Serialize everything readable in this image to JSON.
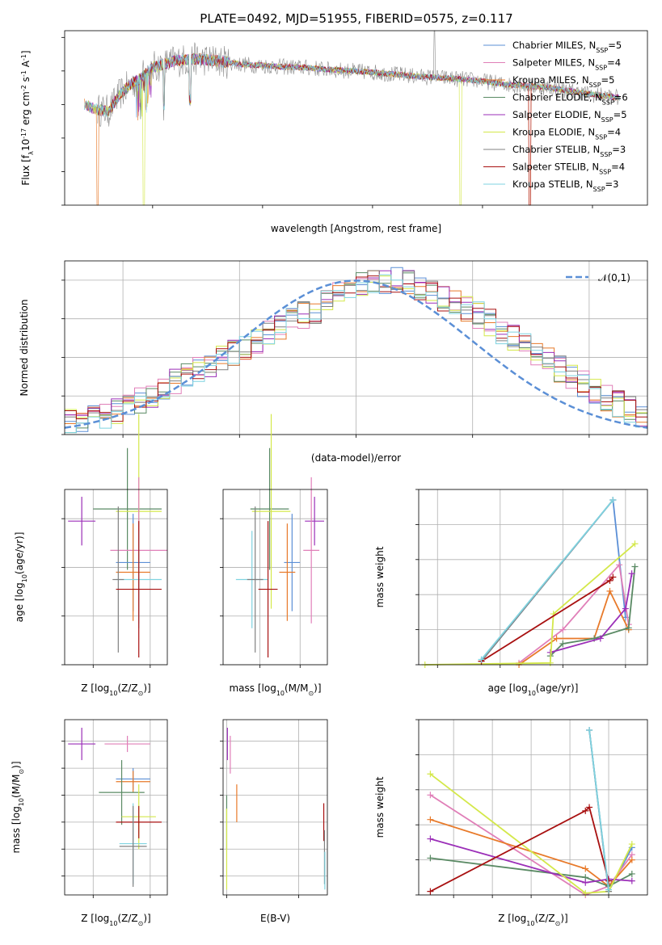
{
  "figure_title": "PLATE=0492, MJD=51955, FIBERID=0575, z=0.117",
  "colors": {
    "Chabrier MILES": "#5b8fd6",
    "Salpeter MILES": "#e07fb8",
    "Kroupa MILES": "#e87a2a",
    "Chabrier ELODIE": "#5a8a64",
    "Salpeter ELODIE": "#9b2fb8",
    "Kroupa ELODIE": "#d4e84a",
    "Chabrier STELIB": "#808080",
    "Salpeter STELIB": "#a81010",
    "Kroupa STELIB": "#7fd3e0"
  },
  "chart_data": [
    {
      "id": "spectrum",
      "type": "line",
      "title": "PLATE=0492, MJD=51955, FIBERID=0575, z=0.117",
      "xlabel": "wavelength [Angstrom, rest frame]",
      "ylabel": "Flux [f$_\\lambda$10$^{-17}$ erg cm$^{-2}$ s$^{-1}$ A$^{-1}$]",
      "xlim": [
        3200,
        8500
      ],
      "ylim": [
        0,
        26
      ],
      "xticks": [
        4000,
        5000,
        6000,
        7000,
        8000
      ],
      "yticks": [
        0,
        5,
        10,
        15,
        20,
        25
      ],
      "grid": false,
      "legend_position": "top-right",
      "legend": [
        "Chabrier MILES, N$_{SSP}$=5",
        "Salpeter MILES, N$_{SSP}$=4",
        "Kroupa MILES, N$_{SSP}$=5",
        "Chabrier ELODIE, N$_{SSP}$=6",
        "Salpeter ELODIE, N$_{SSP}$=5",
        "Kroupa ELODIE, N$_{SSP}$=4",
        "Chabrier STELIB, N$_{SSP}$=3",
        "Salpeter STELIB, N$_{SSP}$=4",
        "Kroupa STELIB, N$_{SSP}$=3"
      ],
      "continuum": {
        "x": [
          3380,
          3500,
          3600,
          3700,
          3800,
          3900,
          4000,
          4200,
          4400,
          4600,
          4800,
          5000,
          5200,
          5400,
          5600,
          5800,
          6000,
          6200,
          6400,
          6600,
          6800,
          7000,
          7200,
          7400,
          7600,
          7800,
          8000,
          8250
        ],
        "y": [
          15.0,
          14.2,
          14.0,
          16.5,
          18.0,
          19.0,
          20.5,
          21.5,
          21.8,
          21.5,
          21.0,
          20.8,
          20.6,
          20.5,
          20.2,
          20.0,
          19.8,
          19.5,
          19.2,
          19.0,
          18.8,
          18.5,
          18.0,
          17.8,
          17.5,
          17.0,
          16.5,
          16.0
        ]
      },
      "drops": [
        {
          "series": "Kroupa MILES",
          "wavelengths": [
            3500,
            7430
          ]
        },
        {
          "series": "Kroupa ELODIE",
          "wavelengths": [
            3920,
            6800
          ]
        },
        {
          "series": "Salpeter STELIB",
          "wavelengths": [
            7430
          ]
        }
      ]
    },
    {
      "id": "residuals",
      "type": "area",
      "xlabel": "(data-model)/error",
      "ylabel": "Normed distribution",
      "xlim": [
        -2.5,
        2.5
      ],
      "ylim": [
        0,
        0.45
      ],
      "xticks": [
        -2,
        -1,
        0,
        1,
        2
      ],
      "yticks": [
        0.0,
        0.1,
        0.2,
        0.3,
        0.4
      ],
      "grid": true,
      "legend_position": "top-right",
      "legend": [
        "$\\mathcal{N}(0,1)$"
      ],
      "bin_width": 0.1,
      "bin_start": -2.5,
      "envelope": [
        0.03,
        0.035,
        0.04,
        0.05,
        0.06,
        0.075,
        0.09,
        0.105,
        0.12,
        0.135,
        0.15,
        0.165,
        0.18,
        0.195,
        0.21,
        0.225,
        0.24,
        0.26,
        0.28,
        0.3,
        0.31,
        0.32,
        0.34,
        0.36,
        0.375,
        0.385,
        0.39,
        0.395,
        0.4,
        0.39,
        0.38,
        0.37,
        0.355,
        0.34,
        0.325,
        0.31,
        0.29,
        0.27,
        0.25,
        0.23,
        0.21,
        0.19,
        0.17,
        0.15,
        0.13,
        0.11,
        0.095,
        0.08,
        0.065,
        0.05
      ]
    },
    {
      "id": "age-vs-Z",
      "type": "scatter",
      "xlabel": "Z [log$_{10}$(Z/Z$_\\odot$)]",
      "ylabel": "age  [log$_{10}$(age/yr)]",
      "xlim": [
        -0.75,
        0.15
      ],
      "ylim": [
        9.4,
        10.12
      ],
      "xticks": [
        -0.5,
        0.0
      ],
      "yticks": [
        9.4,
        9.6,
        9.8,
        10.0
      ],
      "grid": true,
      "points": [
        {
          "series": "Salpeter ELODIE",
          "x": -0.6,
          "y": 9.99,
          "xerr": 0.12,
          "yerr": 0.1
        },
        {
          "series": "Chabrier ELODIE",
          "x": -0.2,
          "y": 10.04,
          "xerr": 0.3,
          "yerr": 0.25
        },
        {
          "series": "Kroupa ELODIE",
          "x": -0.1,
          "y": 10.03,
          "xerr": 0.2,
          "yerr": 0.4
        },
        {
          "series": "Salpeter MILES",
          "x": -0.1,
          "y": 9.87,
          "xerr": 0.25,
          "yerr": 0.3
        },
        {
          "series": "Chabrier MILES",
          "x": -0.15,
          "y": 9.82,
          "xerr": 0.15,
          "yerr": 0.2
        },
        {
          "series": "Kroupa MILES",
          "x": -0.15,
          "y": 9.78,
          "xerr": 0.15,
          "yerr": 0.2
        },
        {
          "series": "Kroupa STELIB",
          "x": -0.1,
          "y": 9.75,
          "xerr": 0.2,
          "yerr": 0.2
        },
        {
          "series": "Chabrier STELIB",
          "x": -0.28,
          "y": 9.75,
          "xerr": 0.05,
          "yerr": 0.3
        },
        {
          "series": "Salpeter STELIB",
          "x": -0.1,
          "y": 9.71,
          "xerr": 0.2,
          "yerr": 0.28
        }
      ]
    },
    {
      "id": "age-vs-mass",
      "type": "scatter",
      "xlabel": "mass [log$_{10}$(M/M$_\\odot$)]",
      "ylabel": "",
      "xlim": [
        10.02,
        10.67
      ],
      "ylim": [
        9.4,
        10.12
      ],
      "xticks": [
        10.25,
        10.5
      ],
      "yticks": [
        9.4,
        9.6,
        9.8,
        10.0
      ],
      "grid": true,
      "points": [
        {
          "series": "Salpeter ELODIE",
          "x": 10.59,
          "y": 9.99,
          "xerr": 0.06,
          "yerr": 0.1
        },
        {
          "series": "Chabrier ELODIE",
          "x": 10.31,
          "y": 10.04,
          "xerr": 0.12,
          "yerr": 0.25
        },
        {
          "series": "Kroupa ELODIE",
          "x": 10.32,
          "y": 10.03,
          "xerr": 0.12,
          "yerr": 0.4
        },
        {
          "series": "Salpeter MILES",
          "x": 10.57,
          "y": 9.87,
          "xerr": 0.05,
          "yerr": 0.3
        },
        {
          "series": "Chabrier MILES",
          "x": 10.45,
          "y": 9.82,
          "xerr": 0.05,
          "yerr": 0.2
        },
        {
          "series": "Kroupa MILES",
          "x": 10.42,
          "y": 9.78,
          "xerr": 0.05,
          "yerr": 0.2
        },
        {
          "series": "Kroupa STELIB",
          "x": 10.2,
          "y": 9.75,
          "xerr": 0.1,
          "yerr": 0.2
        },
        {
          "series": "Chabrier STELIB",
          "x": 10.22,
          "y": 9.75,
          "xerr": 0.05,
          "yerr": 0.3
        },
        {
          "series": "Salpeter STELIB",
          "x": 10.3,
          "y": 9.71,
          "xerr": 0.06,
          "yerr": 0.28
        }
      ]
    },
    {
      "id": "weight-vs-age",
      "type": "line",
      "xlabel": "age  [log$_{10}$(age/yr)]",
      "ylabel": "mass weight",
      "xlim": [
        6.7,
        10.35
      ],
      "ylim": [
        0,
        1
      ],
      "xticks": [
        7,
        8,
        9,
        10
      ],
      "yticks": [
        0.0,
        0.2,
        0.4,
        0.6,
        0.8,
        1.0
      ],
      "grid": true,
      "series": [
        {
          "name": "Chabrier MILES",
          "x": [
            7.7,
            9.8,
            10.0
          ],
          "y": [
            0.02,
            0.94,
            0.27
          ]
        },
        {
          "name": "Salpeter MILES",
          "x": [
            8.3,
            9.0,
            9.9,
            10.05
          ],
          "y": [
            0.01,
            0.2,
            0.57,
            0.23
          ]
        },
        {
          "name": "Kroupa MILES",
          "x": [
            8.3,
            8.9,
            9.5,
            9.75,
            10.05
          ],
          "y": [
            0.0,
            0.15,
            0.15,
            0.42,
            0.2
          ]
        },
        {
          "name": "Chabrier ELODIE",
          "x": [
            8.8,
            9.0,
            9.5,
            10.05,
            10.15
          ],
          "y": [
            0.05,
            0.12,
            0.15,
            0.21,
            0.56
          ]
        },
        {
          "name": "Salpeter ELODIE",
          "x": [
            8.8,
            9.6,
            10.0,
            10.1
          ],
          "y": [
            0.07,
            0.15,
            0.32,
            0.52
          ]
        },
        {
          "name": "Kroupa ELODIE",
          "x": [
            6.8,
            8.8,
            8.85,
            10.15
          ],
          "y": [
            0.0,
            0.01,
            0.29,
            0.69
          ]
        },
        {
          "name": "Chabrier STELIB",
          "x": [
            7.7,
            9.8
          ],
          "y": [
            0.02,
            0.94
          ]
        },
        {
          "name": "Salpeter STELIB",
          "x": [
            7.7,
            9.75,
            9.8
          ],
          "y": [
            0.02,
            0.48,
            0.5
          ]
        },
        {
          "name": "Kroupa STELIB",
          "x": [
            7.7,
            9.8
          ],
          "y": [
            0.03,
            0.94
          ]
        }
      ]
    },
    {
      "id": "mass-vs-Z",
      "type": "scatter",
      "xlabel": "Z [log$_{10}$(Z/Z$_\\odot$)]",
      "ylabel": "mass [log$_{10}$(M/M$_\\odot$)]",
      "xlim": [
        -0.75,
        0.15
      ],
      "ylim": [
        10.03,
        10.68
      ],
      "xticks": [
        -0.5,
        0.0
      ],
      "yticks": [
        10.1,
        10.2,
        10.3,
        10.4,
        10.5,
        10.6
      ],
      "grid": true,
      "points": [
        {
          "series": "Salpeter ELODIE",
          "x": -0.6,
          "y": 10.59,
          "xerr": 0.12,
          "yerr": 0.06
        },
        {
          "series": "Salpeter MILES",
          "x": -0.2,
          "y": 10.59,
          "xerr": 0.2,
          "yerr": 0.03
        },
        {
          "series": "Chabrier MILES",
          "x": -0.15,
          "y": 10.46,
          "xerr": 0.15,
          "yerr": 0.04
        },
        {
          "series": "Kroupa MILES",
          "x": -0.15,
          "y": 10.45,
          "xerr": 0.15,
          "yerr": 0.04
        },
        {
          "series": "Chabrier ELODIE",
          "x": -0.25,
          "y": 10.41,
          "xerr": 0.2,
          "yerr": 0.12
        },
        {
          "series": "Kroupa ELODIE",
          "x": -0.1,
          "y": 10.32,
          "xerr": 0.15,
          "yerr": 0.12
        },
        {
          "series": "Salpeter STELIB",
          "x": -0.1,
          "y": 10.3,
          "xerr": 0.2,
          "yerr": 0.06
        },
        {
          "series": "Kroupa STELIB",
          "x": -0.15,
          "y": 10.22,
          "xerr": 0.12,
          "yerr": 0.15
        },
        {
          "series": "Chabrier STELIB",
          "x": -0.15,
          "y": 10.21,
          "xerr": 0.12,
          "yerr": 0.15
        }
      ]
    },
    {
      "id": "mass-vs-EBV",
      "type": "scatter",
      "xlabel": "E(B-V)",
      "ylabel": "",
      "xlim": [
        -0.01,
        0.28
      ],
      "ylim": [
        10.03,
        10.68
      ],
      "xticks": [
        0.0,
        0.2
      ],
      "yticks": [
        10.1,
        10.2,
        10.3,
        10.4,
        10.5,
        10.6
      ],
      "grid": true,
      "points": [
        {
          "series": "Salpeter ELODIE",
          "x": 0.002,
          "y": 10.59,
          "xerr": 0.0,
          "yerr": 0.06
        },
        {
          "series": "Salpeter MILES",
          "x": 0.01,
          "y": 10.55,
          "xerr": 0.0,
          "yerr": 0.07
        },
        {
          "series": "Kroupa MILES",
          "x": 0.028,
          "y": 10.37,
          "xerr": 0.0,
          "yerr": 0.07
        },
        {
          "series": "Chabrier ELODIE",
          "x": 0.0,
          "y": 10.3,
          "xerr": 0.0,
          "yerr": 0.1
        },
        {
          "series": "Kroupa ELODIE",
          "x": 0.0,
          "y": 10.2,
          "xerr": 0.0,
          "yerr": 0.15
        },
        {
          "series": "Salpeter STELIB",
          "x": 0.27,
          "y": 10.3,
          "xerr": 0.0,
          "yerr": 0.07
        },
        {
          "series": "Chabrier STELIB",
          "x": 0.272,
          "y": 10.17,
          "xerr": 0.0,
          "yerr": 0.1
        },
        {
          "series": "Kroupa STELIB",
          "x": 0.273,
          "y": 10.12,
          "xerr": 0.0,
          "yerr": 0.07
        }
      ]
    },
    {
      "id": "weight-vs-Z",
      "type": "line",
      "xlabel": "Z [log$_{10}$(Z/Z$_\\odot$)]",
      "ylabel": "mass weight",
      "xlim": [
        -2.45,
        0.5
      ],
      "ylim": [
        0,
        1
      ],
      "xticks": [
        -2.0,
        -1.5,
        -1.0,
        -0.5,
        0.0
      ],
      "yticks": [
        0.0,
        0.2,
        0.4,
        0.6,
        0.8,
        1.0
      ],
      "grid": true,
      "series": [
        {
          "name": "Chabrier MILES",
          "x": [
            -0.25,
            0.0,
            0.3
          ],
          "y": [
            0.94,
            0.02,
            0.27
          ]
        },
        {
          "name": "Salpeter MILES",
          "x": [
            -2.3,
            -0.3,
            0.0,
            0.3
          ],
          "y": [
            0.57,
            0.0,
            0.05,
            0.23
          ]
        },
        {
          "name": "Kroupa MILES",
          "x": [
            -2.3,
            -0.3,
            0.0,
            0.3
          ],
          "y": [
            0.43,
            0.15,
            0.05,
            0.2
          ]
        },
        {
          "name": "Chabrier ELODIE",
          "x": [
            -2.3,
            -0.3,
            0.0,
            0.3
          ],
          "y": [
            0.21,
            0.1,
            0.05,
            0.12
          ]
        },
        {
          "name": "Salpeter ELODIE",
          "x": [
            -2.3,
            -0.3,
            0.0,
            0.3
          ],
          "y": [
            0.32,
            0.07,
            0.09,
            0.08
          ]
        },
        {
          "name": "Kroupa ELODIE",
          "x": [
            -2.3,
            -0.3,
            0.0,
            0.3
          ],
          "y": [
            0.69,
            0.01,
            0.02,
            0.29
          ]
        },
        {
          "name": "Chabrier STELIB",
          "x": [
            -0.25,
            0.0
          ],
          "y": [
            0.94,
            0.02
          ]
        },
        {
          "name": "Salpeter STELIB",
          "x": [
            -2.3,
            -0.3,
            -0.25,
            0.0
          ],
          "y": [
            0.02,
            0.48,
            0.5,
            0.08
          ]
        },
        {
          "name": "Kroupa STELIB",
          "x": [
            -0.25,
            0.0
          ],
          "y": [
            0.94,
            0.03
          ]
        }
      ]
    }
  ]
}
